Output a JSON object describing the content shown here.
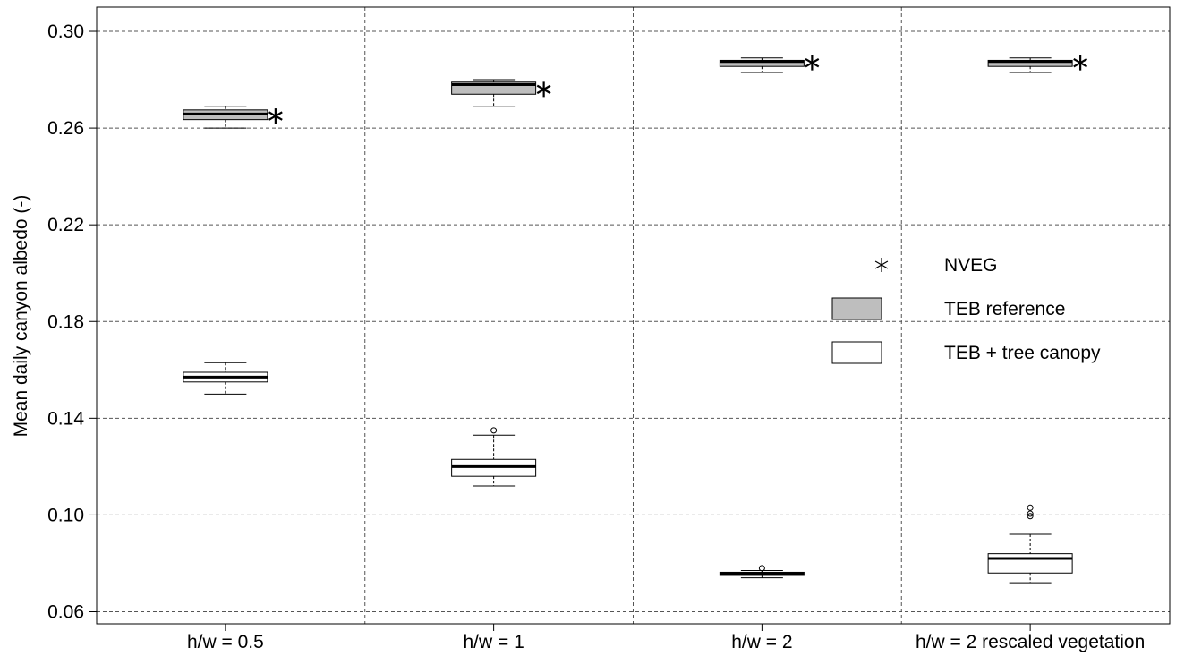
{
  "chart_data": {
    "type": "box",
    "ylabel": "Mean daily canyon albedo (-)",
    "ylim": [
      0.055,
      0.31
    ],
    "yticks": [
      0.06,
      0.1,
      0.14,
      0.18,
      0.22,
      0.26,
      0.3
    ],
    "ytick_labels": [
      "0.06",
      "0.10",
      "0.14",
      "0.18",
      "0.22",
      "0.26",
      "0.30"
    ],
    "grid": true,
    "legend_position": "middle-right",
    "legend": [
      {
        "label": "NVEG",
        "symbol": "asterisk"
      },
      {
        "label": "TEB reference",
        "symbol": "gray-box"
      },
      {
        "label": "TEB + tree canopy",
        "symbol": "white-box"
      }
    ],
    "colors": {
      "teb_reference": "#bebebe",
      "teb_tree_canopy": "#ffffff",
      "grid": "#555555"
    },
    "groups": [
      {
        "label": "h/w = 0.5",
        "nveg": 0.265,
        "teb_reference": {
          "min": 0.26,
          "q1": 0.2635,
          "median": 0.2658,
          "q3": 0.2675,
          "max": 0.269,
          "outliers": []
        },
        "teb_tree_canopy": {
          "min": 0.15,
          "q1": 0.155,
          "median": 0.157,
          "q3": 0.159,
          "max": 0.163,
          "outliers": []
        }
      },
      {
        "label": "h/w = 1",
        "nveg": 0.276,
        "teb_reference": {
          "min": 0.269,
          "q1": 0.274,
          "median": 0.278,
          "q3": 0.279,
          "max": 0.28,
          "outliers": []
        },
        "teb_tree_canopy": {
          "min": 0.112,
          "q1": 0.116,
          "median": 0.12,
          "q3": 0.123,
          "max": 0.133,
          "outliers": [
            0.135
          ]
        }
      },
      {
        "label": "h/w = 2",
        "nveg": 0.287,
        "teb_reference": {
          "min": 0.283,
          "q1": 0.2855,
          "median": 0.2875,
          "q3": 0.288,
          "max": 0.289,
          "outliers": []
        },
        "teb_tree_canopy": {
          "min": 0.074,
          "q1": 0.075,
          "median": 0.0757,
          "q3": 0.0763,
          "max": 0.077,
          "outliers": [
            0.078
          ]
        }
      },
      {
        "label": "h/w = 2 rescaled vegetation",
        "nveg": 0.287,
        "teb_reference": {
          "min": 0.283,
          "q1": 0.2855,
          "median": 0.2875,
          "q3": 0.288,
          "max": 0.289,
          "outliers": []
        },
        "teb_tree_canopy": {
          "min": 0.072,
          "q1": 0.076,
          "median": 0.082,
          "q3": 0.084,
          "max": 0.092,
          "outliers": [
            0.0995,
            0.1005,
            0.103
          ]
        }
      }
    ]
  }
}
